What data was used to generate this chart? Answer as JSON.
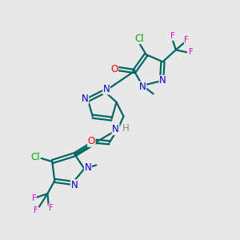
{
  "bg_color": "#e8e8e8",
  "atom_colors": {
    "N": "#0000cc",
    "O": "#ff0000",
    "Cl": "#00aa00",
    "F": "#dd00dd",
    "C_ring": "#006666",
    "H": "#888888",
    "methyl": "#0000cc"
  },
  "bond_color": "#006666",
  "figsize": [
    3.0,
    3.0
  ],
  "dpi": 100
}
